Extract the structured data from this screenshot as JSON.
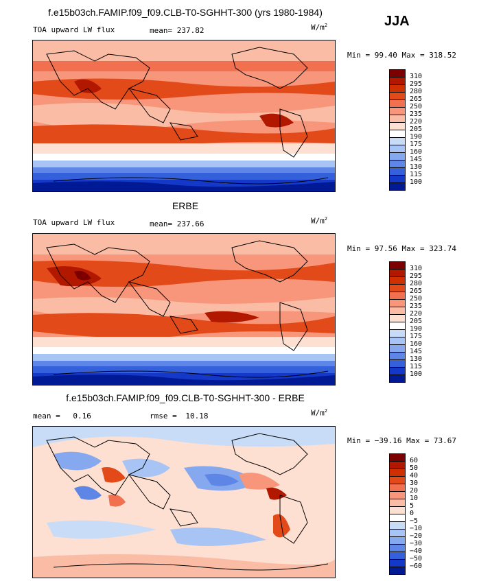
{
  "season": "JJA",
  "units": "W/m",
  "units_exp": "2",
  "panels": [
    {
      "title": "f.e15b03ch.FAMIP.f09_f09.CLB-T0-SGHHT-300 (yrs 1980-1984)",
      "variable": "TOA upward LW flux",
      "stat_label": "mean=",
      "stat_value": "237.82",
      "rmse_label": "",
      "rmse_value": "",
      "minmax": "Min =  99.40 Max = 318.52",
      "levels": [
        "310",
        "295",
        "280",
        "265",
        "250",
        "235",
        "220",
        "205",
        "190",
        "175",
        "160",
        "145",
        "130",
        "115",
        "100"
      ],
      "colors": [
        "#7d0000",
        "#b21800",
        "#d03000",
        "#e34a1a",
        "#f07050",
        "#f7967a",
        "#fbbca5",
        "#fde0d2",
        "#ffffff",
        "#c8dcf8",
        "#a8c4f4",
        "#86a8ee",
        "#5e86e6",
        "#3460dc",
        "#1438c8",
        "#001a96"
      ]
    },
    {
      "title": "ERBE",
      "variable": "TOA upward LW flux",
      "stat_label": "mean=",
      "stat_value": "237.66",
      "rmse_label": "",
      "rmse_value": "",
      "minmax": "Min =  97.56 Max = 323.74",
      "levels": [
        "310",
        "295",
        "280",
        "265",
        "250",
        "235",
        "220",
        "205",
        "190",
        "175",
        "160",
        "145",
        "130",
        "115",
        "100"
      ],
      "colors": [
        "#7d0000",
        "#b21800",
        "#d03000",
        "#e34a1a",
        "#f07050",
        "#f7967a",
        "#fbbca5",
        "#fde0d2",
        "#ffffff",
        "#c8dcf8",
        "#a8c4f4",
        "#86a8ee",
        "#5e86e6",
        "#3460dc",
        "#1438c8",
        "#001a96"
      ]
    },
    {
      "title": "f.e15b03ch.FAMIP.f09_f09.CLB-T0-SGHHT-300 - ERBE",
      "variable": "",
      "stat_label": "mean =",
      "stat_value": "0.16",
      "rmse_label": "rmse =",
      "rmse_value": "10.18",
      "minmax": "Min = −39.16 Max =  73.67",
      "levels": [
        "60",
        "50",
        "40",
        "30",
        "20",
        "10",
        "5",
        "0",
        "−5",
        "−10",
        "−20",
        "−30",
        "−40",
        "−50",
        "−60"
      ],
      "colors": [
        "#7d0000",
        "#b21800",
        "#d03000",
        "#e34a1a",
        "#f07050",
        "#f7967a",
        "#fbbca5",
        "#fde0d2",
        "#ffffff",
        "#c8dcf8",
        "#a8c4f4",
        "#86a8ee",
        "#5e86e6",
        "#3460dc",
        "#1438c8",
        "#001a96"
      ]
    }
  ]
}
